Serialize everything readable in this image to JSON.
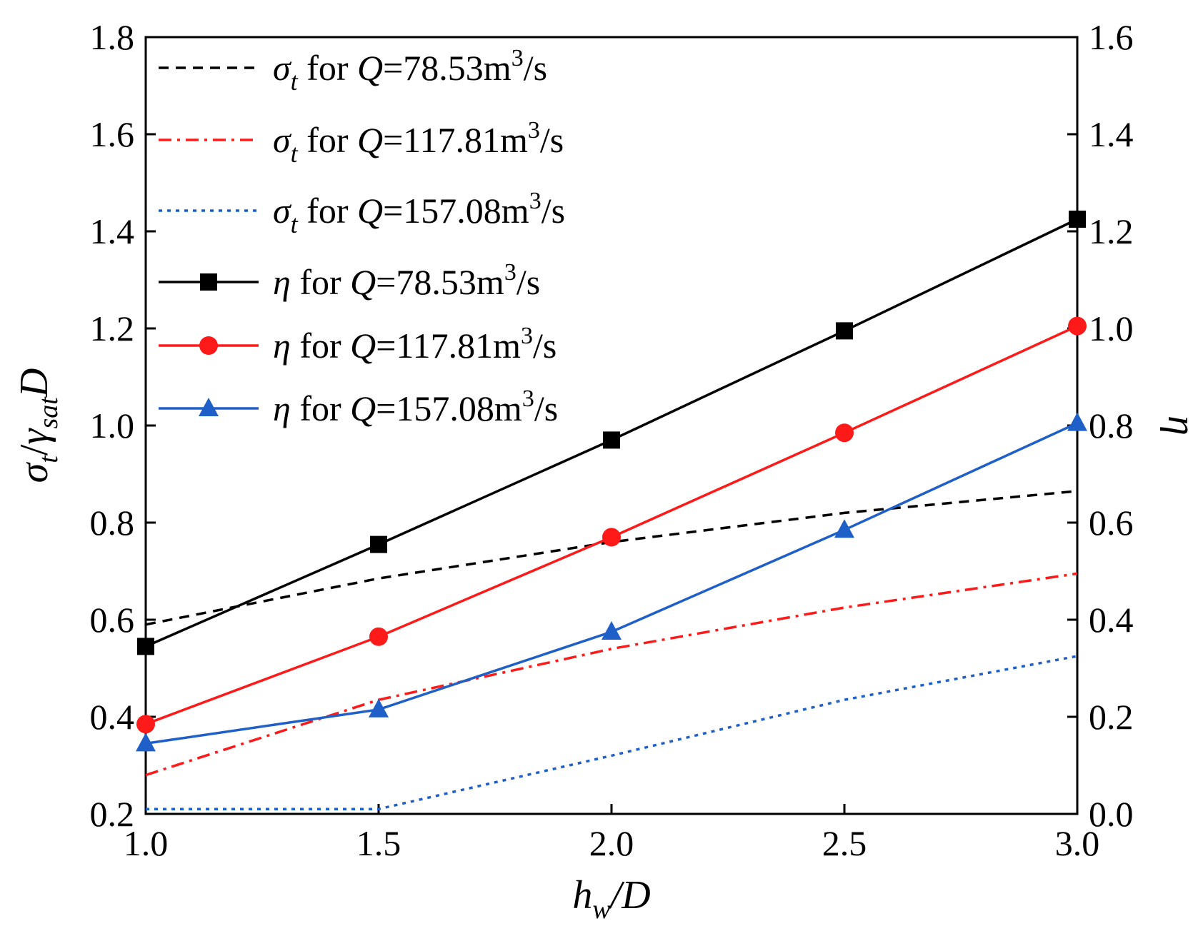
{
  "chart_data": {
    "type": "line",
    "x": [
      1.0,
      1.5,
      2.0,
      2.5,
      3.0
    ],
    "xlim": [
      1.0,
      3.0
    ],
    "xticks": [
      "1.0",
      "1.5",
      "2.0",
      "2.5",
      "3.0"
    ],
    "ylim_left": [
      0.2,
      1.8
    ],
    "yticks_left": [
      "0.2",
      "0.4",
      "0.6",
      "0.8",
      "1.0",
      "1.2",
      "1.4",
      "1.6",
      "1.8"
    ],
    "ylim_right": [
      0.0,
      1.6
    ],
    "yticks_right": [
      "0.0",
      "0.2",
      "0.4",
      "0.6",
      "0.8",
      "1.0",
      "1.2",
      "1.4",
      "1.6"
    ],
    "xlabel": {
      "h": "h",
      "sub": "w",
      "rest": "/D"
    },
    "ylabel_left": {
      "sigma": "σ",
      "sub_t": "t",
      "slash": "/",
      "gamma": "γ",
      "sub_sat": "sat",
      "D": "D"
    },
    "ylabel_right": "η",
    "legend_position": "top-left",
    "series": [
      {
        "name": "σt for Q=78.53m3/s",
        "symbol": "σ",
        "sub": "t",
        "q": "78.53",
        "axis": "left",
        "color": "#000000",
        "style": "dashed",
        "marker": "none",
        "values": [
          0.59,
          0.685,
          0.76,
          0.82,
          0.865
        ]
      },
      {
        "name": "σt for Q=117.81m3/s",
        "symbol": "σ",
        "sub": "t",
        "q": "117.81",
        "axis": "left",
        "color": "#ff1a1a",
        "style": "dashdot",
        "marker": "none",
        "values": [
          0.28,
          0.435,
          0.54,
          0.625,
          0.695
        ]
      },
      {
        "name": "σt for Q=157.08m3/s",
        "symbol": "σ",
        "sub": "t",
        "q": "157.08",
        "axis": "left",
        "color": "#1f5fc8",
        "style": "dotted",
        "marker": "none",
        "values": [
          0.21,
          0.21,
          0.32,
          0.435,
          0.525
        ]
      },
      {
        "name": "η for Q=78.53m3/s",
        "symbol": "η",
        "sub": "",
        "q": "78.53",
        "axis": "right",
        "color": "#000000",
        "style": "solid",
        "marker": "square",
        "values": [
          0.345,
          0.555,
          0.77,
          0.995,
          1.225
        ]
      },
      {
        "name": "η for Q=117.81m3/s",
        "symbol": "η",
        "sub": "",
        "q": "117.81",
        "axis": "right",
        "color": "#ff1a1a",
        "style": "solid",
        "marker": "circle",
        "values": [
          0.185,
          0.365,
          0.57,
          0.785,
          1.005
        ]
      },
      {
        "name": "η for Q=157.08m3/s",
        "symbol": "η",
        "sub": "",
        "q": "157.08",
        "axis": "right",
        "color": "#1f5fc8",
        "style": "solid",
        "marker": "triangle",
        "values": [
          0.145,
          0.215,
          0.375,
          0.585,
          0.805
        ]
      }
    ],
    "legend_text": {
      "for": "for",
      "Q": "Q",
      "eq": "=",
      "unit_m": "m",
      "unit_exp": "3",
      "unit_s": "/s"
    }
  }
}
